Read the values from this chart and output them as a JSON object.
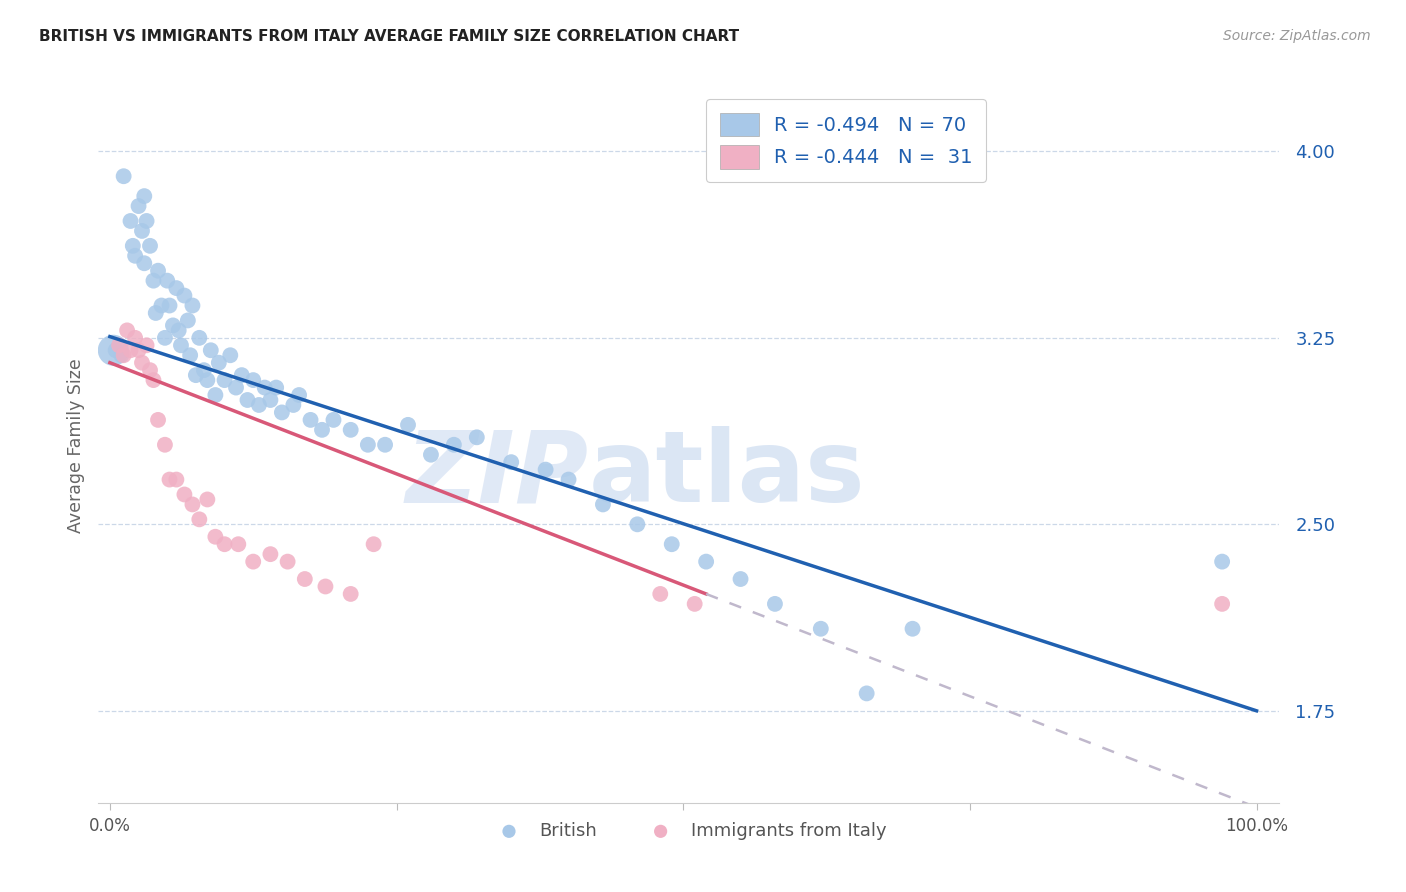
{
  "title": "BRITISH VS IMMIGRANTS FROM ITALY AVERAGE FAMILY SIZE CORRELATION CHART",
  "source": "Source: ZipAtlas.com",
  "ylabel": "Average Family Size",
  "xlim": [
    -0.01,
    1.02
  ],
  "ylim": [
    1.38,
    4.25
  ],
  "yticks": [
    1.75,
    2.5,
    3.25,
    4.0
  ],
  "xticks": [
    0,
    0.25,
    0.5,
    0.75,
    1.0
  ],
  "xticklabels": [
    "0.0%",
    "",
    "",
    "",
    "100.0%"
  ],
  "legend_r1": "-0.494",
  "legend_n1": "70",
  "legend_r2": "-0.444",
  "legend_n2": "31",
  "british_color": "#a8c8e8",
  "italian_color": "#f0b0c4",
  "british_line_color": "#2060b0",
  "italian_line_color": "#d85878",
  "dashed_line_color": "#c0b8cc",
  "watermark_color": "#ccdcf0",
  "british_x": [
    0.005,
    0.01,
    0.012,
    0.018,
    0.02,
    0.022,
    0.025,
    0.028,
    0.03,
    0.03,
    0.032,
    0.035,
    0.038,
    0.04,
    0.042,
    0.045,
    0.048,
    0.05,
    0.052,
    0.055,
    0.058,
    0.06,
    0.062,
    0.065,
    0.068,
    0.07,
    0.072,
    0.075,
    0.078,
    0.082,
    0.085,
    0.088,
    0.092,
    0.095,
    0.1,
    0.105,
    0.11,
    0.115,
    0.12,
    0.125,
    0.13,
    0.135,
    0.14,
    0.145,
    0.15,
    0.16,
    0.165,
    0.175,
    0.185,
    0.195,
    0.21,
    0.225,
    0.24,
    0.26,
    0.28,
    0.3,
    0.32,
    0.35,
    0.38,
    0.4,
    0.43,
    0.46,
    0.49,
    0.52,
    0.55,
    0.58,
    0.62,
    0.66,
    0.7,
    0.97
  ],
  "british_y": [
    3.2,
    3.18,
    3.9,
    3.72,
    3.62,
    3.58,
    3.78,
    3.68,
    3.82,
    3.55,
    3.72,
    3.62,
    3.48,
    3.35,
    3.52,
    3.38,
    3.25,
    3.48,
    3.38,
    3.3,
    3.45,
    3.28,
    3.22,
    3.42,
    3.32,
    3.18,
    3.38,
    3.1,
    3.25,
    3.12,
    3.08,
    3.2,
    3.02,
    3.15,
    3.08,
    3.18,
    3.05,
    3.1,
    3.0,
    3.08,
    2.98,
    3.05,
    3.0,
    3.05,
    2.95,
    2.98,
    3.02,
    2.92,
    2.88,
    2.92,
    2.88,
    2.82,
    2.82,
    2.9,
    2.78,
    2.82,
    2.85,
    2.75,
    2.72,
    2.68,
    2.58,
    2.5,
    2.42,
    2.35,
    2.28,
    2.18,
    2.08,
    1.82,
    2.08,
    2.35
  ],
  "british_big_x": [
    0.003
  ],
  "british_big_y": [
    3.2
  ],
  "british_big_size": 500,
  "italian_x": [
    0.008,
    0.012,
    0.015,
    0.018,
    0.022,
    0.025,
    0.028,
    0.032,
    0.035,
    0.038,
    0.042,
    0.048,
    0.052,
    0.058,
    0.065,
    0.072,
    0.078,
    0.085,
    0.092,
    0.1,
    0.112,
    0.125,
    0.14,
    0.155,
    0.17,
    0.188,
    0.21,
    0.23,
    0.48,
    0.51,
    0.97
  ],
  "italian_y": [
    3.22,
    3.18,
    3.28,
    3.2,
    3.25,
    3.2,
    3.15,
    3.22,
    3.12,
    3.08,
    2.92,
    2.82,
    2.68,
    2.68,
    2.62,
    2.58,
    2.52,
    2.6,
    2.45,
    2.42,
    2.42,
    2.35,
    2.38,
    2.35,
    2.28,
    2.25,
    2.22,
    2.42,
    2.22,
    2.18,
    2.18
  ],
  "dot_size": 130
}
